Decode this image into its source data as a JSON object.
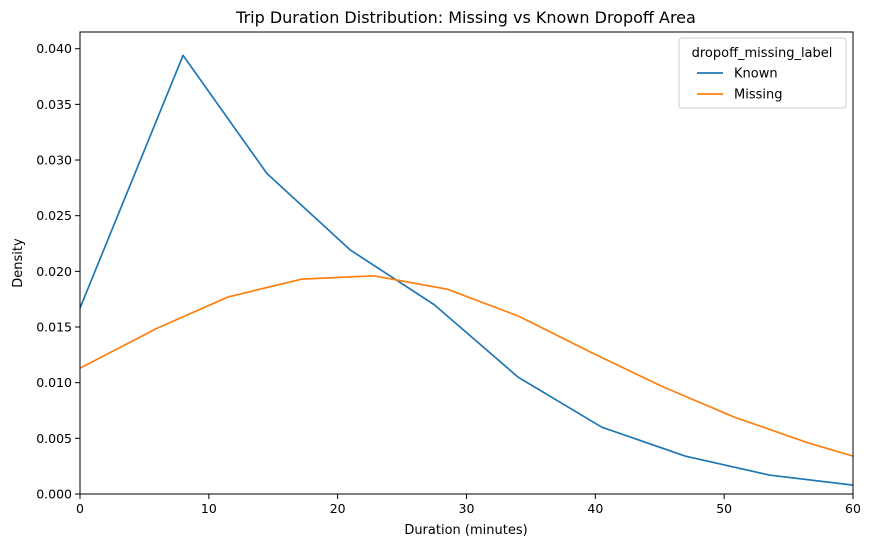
{
  "chart_data": {
    "type": "line",
    "title": "Trip Duration Distribution: Missing vs Known Dropoff Area",
    "xlabel": "Duration (minutes)",
    "ylabel": "Density",
    "xlim": [
      0,
      60
    ],
    "ylim": [
      0,
      0.0415
    ],
    "xticks": [
      0,
      10,
      20,
      30,
      40,
      50,
      60
    ],
    "xtick_labels": [
      "0",
      "10",
      "20",
      "30",
      "40",
      "50",
      "60"
    ],
    "yticks": [
      0,
      0.005,
      0.01,
      0.015,
      0.02,
      0.025,
      0.03,
      0.035,
      0.04
    ],
    "ytick_labels": [
      "0.000",
      "0.005",
      "0.010",
      "0.015",
      "0.020",
      "0.025",
      "0.030",
      "0.035",
      "0.040"
    ],
    "grid": false,
    "legend": {
      "title": "dropoff_missing_label",
      "placement": "top-right"
    },
    "series": [
      {
        "name": "Known",
        "color": "#1f77b4",
        "x": [
          0,
          8,
          14.5,
          21,
          27.5,
          34,
          40.5,
          47,
          53.5,
          60
        ],
        "y": [
          0.0167,
          0.0394,
          0.0288,
          0.0219,
          0.017,
          0.0105,
          0.006,
          0.0034,
          0.0017,
          0.0008
        ]
      },
      {
        "name": "Missing",
        "color": "#ff7f0e",
        "x": [
          0,
          6,
          11.5,
          17.2,
          22.8,
          28.5,
          34,
          39.7,
          45.3,
          50.8,
          56.5,
          60
        ],
        "y": [
          0.0113,
          0.0149,
          0.0177,
          0.0193,
          0.0196,
          0.0184,
          0.016,
          0.0127,
          0.0096,
          0.0069,
          0.0046,
          0.0034
        ]
      }
    ]
  }
}
